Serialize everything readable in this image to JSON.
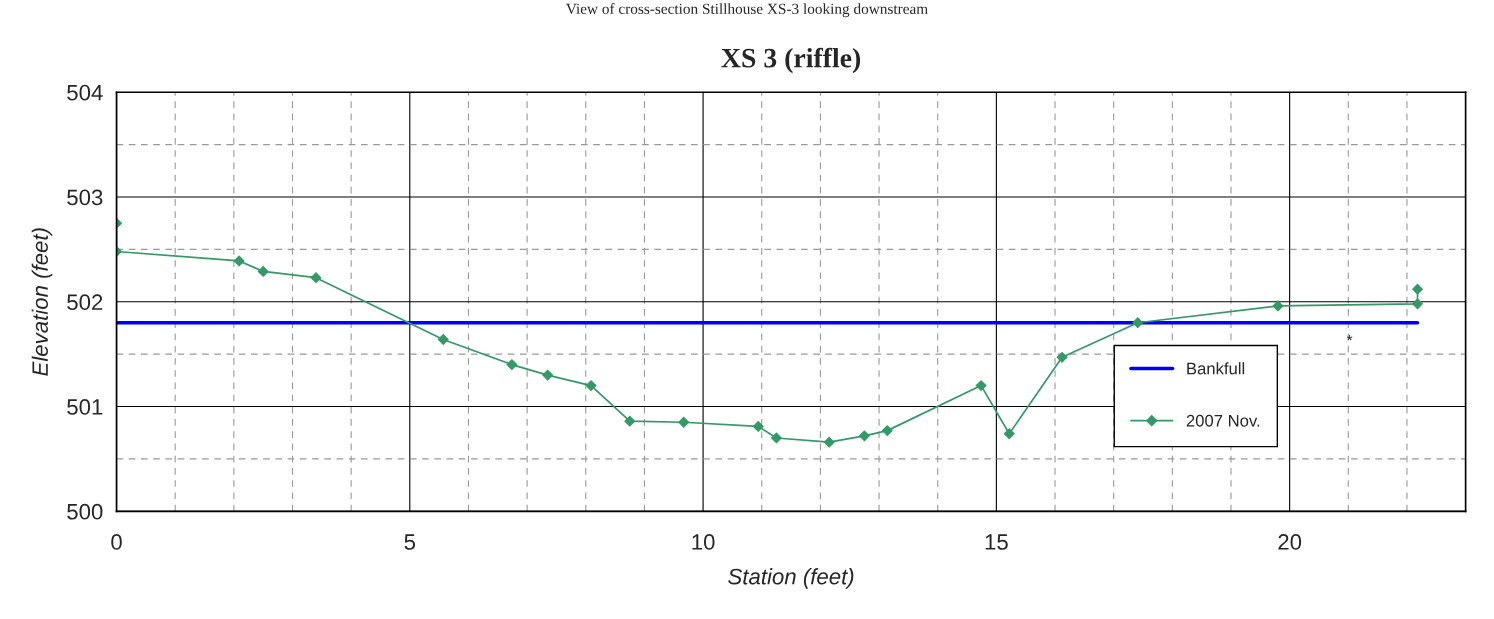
{
  "chart_data": {
    "type": "line",
    "title": "XS 3 (riffle)",
    "subtitle": "View of cross-section Stillhouse XS-3 looking downstream",
    "xlabel": "Station (feet)",
    "ylabel": "Elevation (feet)",
    "series": [
      {
        "name": "Bankfull",
        "color": "#0000ff",
        "marker": "none",
        "x": [
          0,
          22.18
        ],
        "values": [
          501.8,
          501.8
        ]
      },
      {
        "name": "2007 Nov.",
        "color": "#339966",
        "marker": "diamond",
        "x": [
          0,
          0,
          2.09,
          2.5,
          3.4,
          5.57,
          6.74,
          7.35,
          8.09,
          8.75,
          9.67,
          10.94,
          11.25,
          12.15,
          12.75,
          13.14,
          14.74,
          15.22,
          16.12,
          17.41,
          19.8,
          22.18,
          22.18
        ],
        "values": [
          502.75,
          502.48,
          502.39,
          502.29,
          502.23,
          501.64,
          501.4,
          501.3,
          501.2,
          500.86,
          500.85,
          500.81,
          500.7,
          500.66,
          500.72,
          500.77,
          501.2,
          500.74,
          501.47,
          501.8,
          501.96,
          501.98,
          502.12
        ]
      }
    ],
    "annotations": [
      "*"
    ],
    "xlim": [
      0,
      23
    ],
    "ylim": [
      500,
      504
    ],
    "xticks": [
      0,
      {
        "value": 1,
        "label": null
      },
      {
        "value": 2,
        "label": null
      },
      {
        "value": 3,
        "label": null
      },
      {
        "value": 4,
        "label": null
      },
      5,
      {
        "value": 6,
        "label": null
      },
      {
        "value": 7,
        "label": null
      },
      {
        "value": 8,
        "label": null
      },
      {
        "value": 9,
        "label": null
      },
      10,
      {
        "value": 11,
        "label": null
      },
      {
        "value": 12,
        "label": null
      },
      {
        "value": 13,
        "label": null
      },
      {
        "value": 14,
        "label": null
      },
      15,
      {
        "value": 16,
        "label": null
      },
      {
        "value": 17,
        "label": null
      },
      {
        "value": 18,
        "label": null
      },
      {
        "value": 19,
        "label": null
      },
      20,
      {
        "value": 21,
        "label": null
      },
      {
        "value": 22,
        "label": null
      }
    ],
    "yticks": [
      500,
      {
        "value": 500.5,
        "label": null
      },
      501,
      {
        "value": 501.5,
        "label": null
      },
      502,
      {
        "value": 502.5,
        "label": null
      },
      503,
      {
        "value": 503.5,
        "label": null
      },
      504
    ],
    "grid": true,
    "legend": "right",
    "line_style": "solid"
  }
}
